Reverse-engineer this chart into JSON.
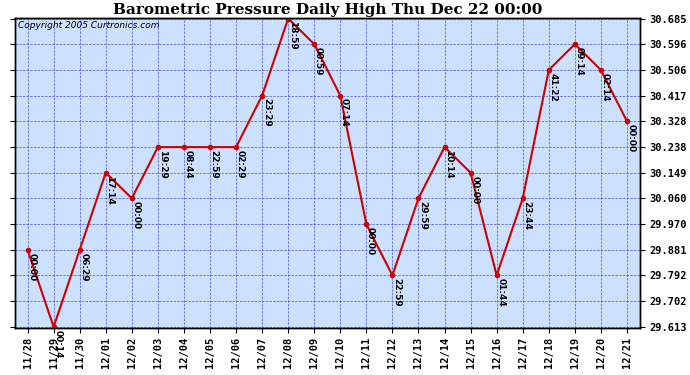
{
  "title": "Barometric Pressure Daily High Thu Dec 22 00:00",
  "copyright": "Copyright 2005 Curtronics.com",
  "x_labels": [
    "11/28",
    "11/29",
    "11/30",
    "12/01",
    "12/02",
    "12/03",
    "12/04",
    "12/05",
    "12/06",
    "12/07",
    "12/08",
    "12/09",
    "12/10",
    "12/11",
    "12/12",
    "12/13",
    "12/14",
    "12/15",
    "12/16",
    "12/17",
    "12/18",
    "12/19",
    "12/20",
    "12/21"
  ],
  "y_values": [
    29.881,
    29.613,
    29.881,
    30.149,
    30.06,
    30.238,
    30.238,
    30.238,
    30.238,
    30.417,
    30.685,
    30.596,
    30.417,
    29.97,
    29.792,
    30.06,
    30.238,
    30.149,
    29.792,
    30.06,
    30.506,
    30.596,
    30.506,
    30.328
  ],
  "point_labels": [
    "00:00",
    "00:14",
    "06:29",
    "17:14",
    "00:00",
    "19:29",
    "08:44",
    "22:59",
    "02:29",
    "23:29",
    "18:59",
    "00:59",
    "07:14",
    "00:00",
    "22:59",
    "29:59",
    "10:14",
    "00:00",
    "01:44",
    "23:44",
    "41:22",
    "09:14",
    "02:14",
    "00:00"
  ],
  "y_ticks": [
    29.613,
    29.702,
    29.792,
    29.881,
    29.97,
    30.06,
    30.149,
    30.238,
    30.328,
    30.417,
    30.506,
    30.596,
    30.685
  ],
  "y_min": 29.613,
  "y_max": 30.685,
  "line_color": "#cc0000",
  "marker_color": "#cc0000",
  "bg_color": "#ffffff",
  "plot_bg_color": "#cce0ff",
  "grid_color": "#3333cc",
  "title_color": "#000000",
  "title_fontsize": 11,
  "tick_fontsize": 7.5,
  "label_fontsize": 6.5
}
